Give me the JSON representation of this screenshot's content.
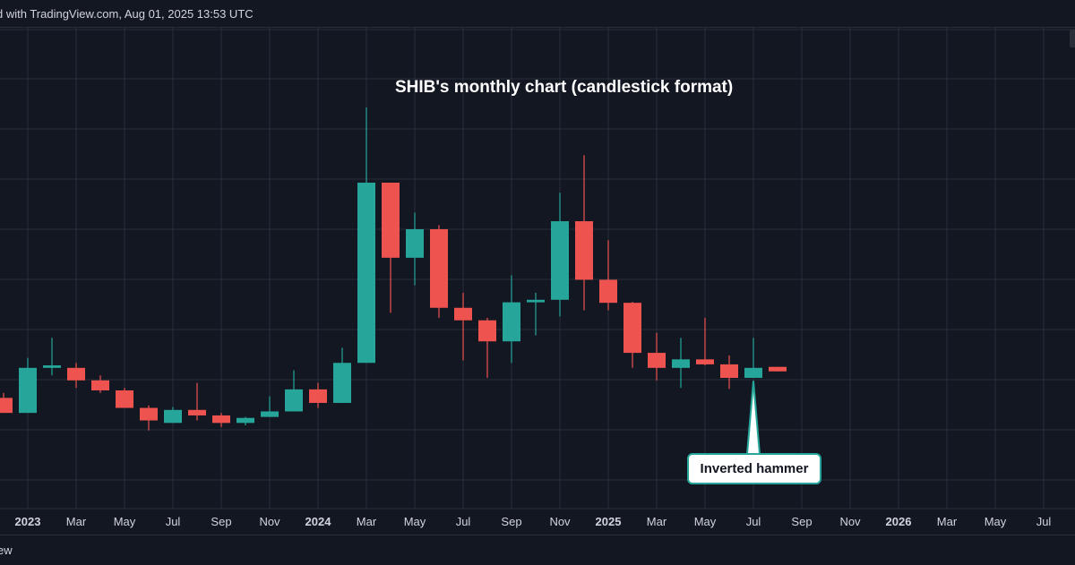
{
  "header": {
    "watermark": "d with TradingView.com, Aug 01, 2025 13:53 UTC"
  },
  "footer": {
    "label": "ew"
  },
  "colors": {
    "background": "#131722",
    "grid": "#2a2e39",
    "bullish": "#26a69a",
    "bearish": "#ef5350",
    "axis_text": "#d1d4dc",
    "annotation_bg": "#ffffff"
  },
  "chart_data": {
    "type": "candlestick",
    "title": "SHIB's monthly chart (candlestick format)",
    "xlabel": "",
    "ylabel": "",
    "interval": "monthly",
    "y_axis_visible": false,
    "grid": true,
    "x_tick_labels": [
      {
        "label": "2023",
        "date": "2023-01"
      },
      {
        "label": "Mar",
        "date": "2023-03"
      },
      {
        "label": "May",
        "date": "2023-05"
      },
      {
        "label": "Jul",
        "date": "2023-07"
      },
      {
        "label": "Sep",
        "date": "2023-09"
      },
      {
        "label": "Nov",
        "date": "2023-11"
      },
      {
        "label": "2024",
        "date": "2024-01"
      },
      {
        "label": "Mar",
        "date": "2024-03"
      },
      {
        "label": "May",
        "date": "2024-05"
      },
      {
        "label": "Jul",
        "date": "2024-07"
      },
      {
        "label": "Sep",
        "date": "2024-09"
      },
      {
        "label": "Nov",
        "date": "2024-11"
      },
      {
        "label": "2025",
        "date": "2025-01"
      },
      {
        "label": "Mar",
        "date": "2025-03"
      },
      {
        "label": "May",
        "date": "2025-05"
      },
      {
        "label": "Jul",
        "date": "2025-07"
      },
      {
        "label": "Sep",
        "date": "2025-09"
      },
      {
        "label": "Nov",
        "date": "2025-11"
      },
      {
        "label": "2026",
        "date": "2026-01"
      },
      {
        "label": "Mar",
        "date": "2026-03"
      },
      {
        "label": "May",
        "date": "2026-05"
      },
      {
        "label": "Jul",
        "date": "2026-07"
      }
    ],
    "candles": [
      {
        "date": "2022-12",
        "open": 1.8,
        "high": 1.9,
        "low": 1.5,
        "close": 1.5
      },
      {
        "date": "2023-01",
        "open": 1.5,
        "high": 2.6,
        "low": 1.5,
        "close": 2.4
      },
      {
        "date": "2023-02",
        "open": 2.4,
        "high": 3.0,
        "low": 2.25,
        "close": 2.45
      },
      {
        "date": "2023-03",
        "open": 2.4,
        "high": 2.5,
        "low": 2.0,
        "close": 2.15
      },
      {
        "date": "2023-04",
        "open": 2.15,
        "high": 2.25,
        "low": 1.9,
        "close": 1.95
      },
      {
        "date": "2023-05",
        "open": 1.95,
        "high": 2.0,
        "low": 1.6,
        "close": 1.6
      },
      {
        "date": "2023-06",
        "open": 1.6,
        "high": 1.65,
        "low": 1.15,
        "close": 1.35
      },
      {
        "date": "2023-07",
        "open": 1.3,
        "high": 1.62,
        "low": 1.3,
        "close": 1.56
      },
      {
        "date": "2023-08",
        "open": 1.56,
        "high": 2.1,
        "low": 1.35,
        "close": 1.45
      },
      {
        "date": "2023-09",
        "open": 1.45,
        "high": 1.5,
        "low": 1.22,
        "close": 1.3
      },
      {
        "date": "2023-10",
        "open": 1.3,
        "high": 1.42,
        "low": 1.25,
        "close": 1.4
      },
      {
        "date": "2023-11",
        "open": 1.42,
        "high": 1.83,
        "low": 1.42,
        "close": 1.53
      },
      {
        "date": "2023-12",
        "open": 1.53,
        "high": 2.35,
        "low": 1.53,
        "close": 1.97
      },
      {
        "date": "2024-01",
        "open": 1.97,
        "high": 2.1,
        "low": 1.6,
        "close": 1.7
      },
      {
        "date": "2024-02",
        "open": 1.7,
        "high": 2.8,
        "low": 1.7,
        "close": 2.5
      },
      {
        "date": "2024-03",
        "open": 2.5,
        "high": 7.6,
        "low": 2.5,
        "close": 6.1
      },
      {
        "date": "2024-04",
        "open": 6.1,
        "high": 6.1,
        "low": 3.5,
        "close": 4.6
      },
      {
        "date": "2024-05",
        "open": 4.6,
        "high": 5.5,
        "low": 4.05,
        "close": 5.17
      },
      {
        "date": "2024-06",
        "open": 5.17,
        "high": 5.25,
        "low": 3.4,
        "close": 3.6
      },
      {
        "date": "2024-07",
        "open": 3.6,
        "high": 3.9,
        "low": 2.55,
        "close": 3.35
      },
      {
        "date": "2024-08",
        "open": 3.35,
        "high": 3.4,
        "low": 2.2,
        "close": 2.93
      },
      {
        "date": "2024-09",
        "open": 2.93,
        "high": 4.25,
        "low": 2.5,
        "close": 3.71
      },
      {
        "date": "2024-10",
        "open": 3.71,
        "high": 3.9,
        "low": 3.05,
        "close": 3.76
      },
      {
        "date": "2024-11",
        "open": 3.76,
        "high": 5.9,
        "low": 3.43,
        "close": 5.33
      },
      {
        "date": "2024-12",
        "open": 5.33,
        "high": 6.65,
        "low": 3.55,
        "close": 4.16
      },
      {
        "date": "2025-01",
        "open": 4.16,
        "high": 4.95,
        "low": 3.55,
        "close": 3.7
      },
      {
        "date": "2025-02",
        "open": 3.7,
        "high": 3.72,
        "low": 2.4,
        "close": 2.7
      },
      {
        "date": "2025-03",
        "open": 2.7,
        "high": 3.1,
        "low": 2.15,
        "close": 2.4
      },
      {
        "date": "2025-04",
        "open": 2.4,
        "high": 3.0,
        "low": 2.0,
        "close": 2.57
      },
      {
        "date": "2025-05",
        "open": 2.57,
        "high": 3.4,
        "low": 2.45,
        "close": 2.47
      },
      {
        "date": "2025-06",
        "open": 2.47,
        "high": 2.65,
        "low": 1.98,
        "close": 2.2
      },
      {
        "date": "2025-07",
        "open": 2.2,
        "high": 3.0,
        "low": 2.2,
        "close": 2.4
      },
      {
        "date": "2025-08",
        "open": 2.42,
        "high": 2.42,
        "low": 2.33,
        "close": 2.33
      }
    ],
    "annotations": [
      {
        "text": "Inverted hammer",
        "target_date": "2025-07"
      }
    ]
  }
}
